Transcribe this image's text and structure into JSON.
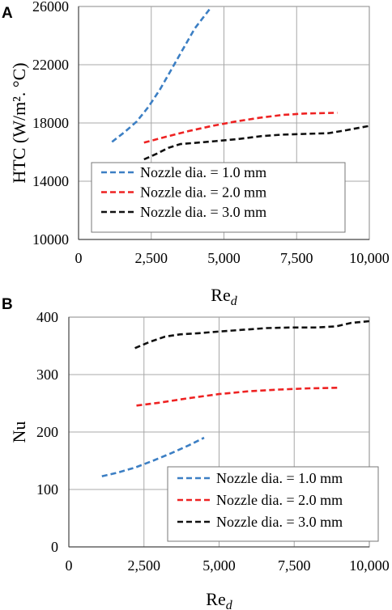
{
  "chart_data": [
    {
      "panel": "A",
      "type": "line",
      "title": "",
      "xlabel": "Re",
      "xlabel_sub": "d",
      "ylabel": "HTC (W/m². °C)",
      "xlim": [
        0,
        10000
      ],
      "ylim": [
        10000,
        26000
      ],
      "xticks": [
        0,
        2500,
        5000,
        7500,
        10000
      ],
      "xtick_labels": [
        "0",
        "2,500",
        "5,000",
        "7,500",
        "10,000"
      ],
      "yticks": [
        10000,
        14000,
        18000,
        22000,
        26000
      ],
      "ytick_labels": [
        "10000",
        "14000",
        "18000",
        "22000",
        "26000"
      ],
      "grid": true,
      "legend": "lower-center",
      "series": [
        {
          "name": "Nozzle dia. = 1.0 mm",
          "color": "#3c7fc4",
          "x": [
            1150,
            1600,
            2000,
            2400,
            2800,
            3200,
            3600,
            4000,
            4500
          ],
          "y": [
            16700,
            17400,
            18100,
            19100,
            20300,
            21700,
            23100,
            24500,
            25800
          ]
        },
        {
          "name": "Nozzle dia. = 2.0 mm",
          "color": "#ee2222",
          "x": [
            2250,
            3000,
            3800,
            4600,
            5400,
            6200,
            7000,
            7800,
            8900
          ],
          "y": [
            16650,
            17050,
            17450,
            17800,
            18100,
            18350,
            18550,
            18650,
            18700
          ]
        },
        {
          "name": "Nozzle dia. = 3.0 mm",
          "color": "#111111",
          "x": [
            2250,
            2700,
            3100,
            3500,
            4100,
            4700,
            5500,
            6300,
            7000,
            7800,
            8600,
            9200,
            10000
          ],
          "y": [
            15500,
            15900,
            16300,
            16550,
            16650,
            16750,
            16900,
            17100,
            17200,
            17250,
            17300,
            17500,
            17800
          ]
        }
      ]
    },
    {
      "panel": "B",
      "type": "line",
      "title": "",
      "xlabel": "Re",
      "xlabel_sub": "d",
      "ylabel": "Nu",
      "xlim": [
        0,
        10000
      ],
      "ylim": [
        0,
        400
      ],
      "xticks": [
        0,
        2500,
        5000,
        7500,
        10000
      ],
      "xtick_labels": [
        "0",
        "2,500",
        "5,000",
        "7,500",
        "10,000"
      ],
      "yticks": [
        0,
        100,
        200,
        300,
        400
      ],
      "ytick_labels": [
        "0",
        "100",
        "200",
        "300",
        "400"
      ],
      "grid": true,
      "legend": "lower-right",
      "series": [
        {
          "name": "Nozzle dia. = 1.0 mm",
          "color": "#3c7fc4",
          "x": [
            1100,
            1600,
            2200,
            2800,
            3400,
            4000,
            4500
          ],
          "y": [
            123,
            129,
            138,
            150,
            163,
            177,
            190
          ]
        },
        {
          "name": "Nozzle dia. = 2.0 mm",
          "color": "#ee2222",
          "x": [
            2250,
            3000,
            4000,
            5000,
            6000,
            7000,
            8000,
            9000
          ],
          "y": [
            246,
            251,
            259,
            266,
            271,
            274,
            276,
            277
          ]
        },
        {
          "name": "Nozzle dia. = 3.0 mm",
          "color": "#111111",
          "x": [
            2200,
            2700,
            3200,
            3700,
            4300,
            5000,
            5800,
            6600,
            7400,
            8200,
            8900,
            9400,
            10000
          ],
          "y": [
            346,
            357,
            366,
            370,
            372,
            375,
            378,
            381,
            382,
            382,
            384,
            390,
            393
          ]
        }
      ]
    }
  ]
}
